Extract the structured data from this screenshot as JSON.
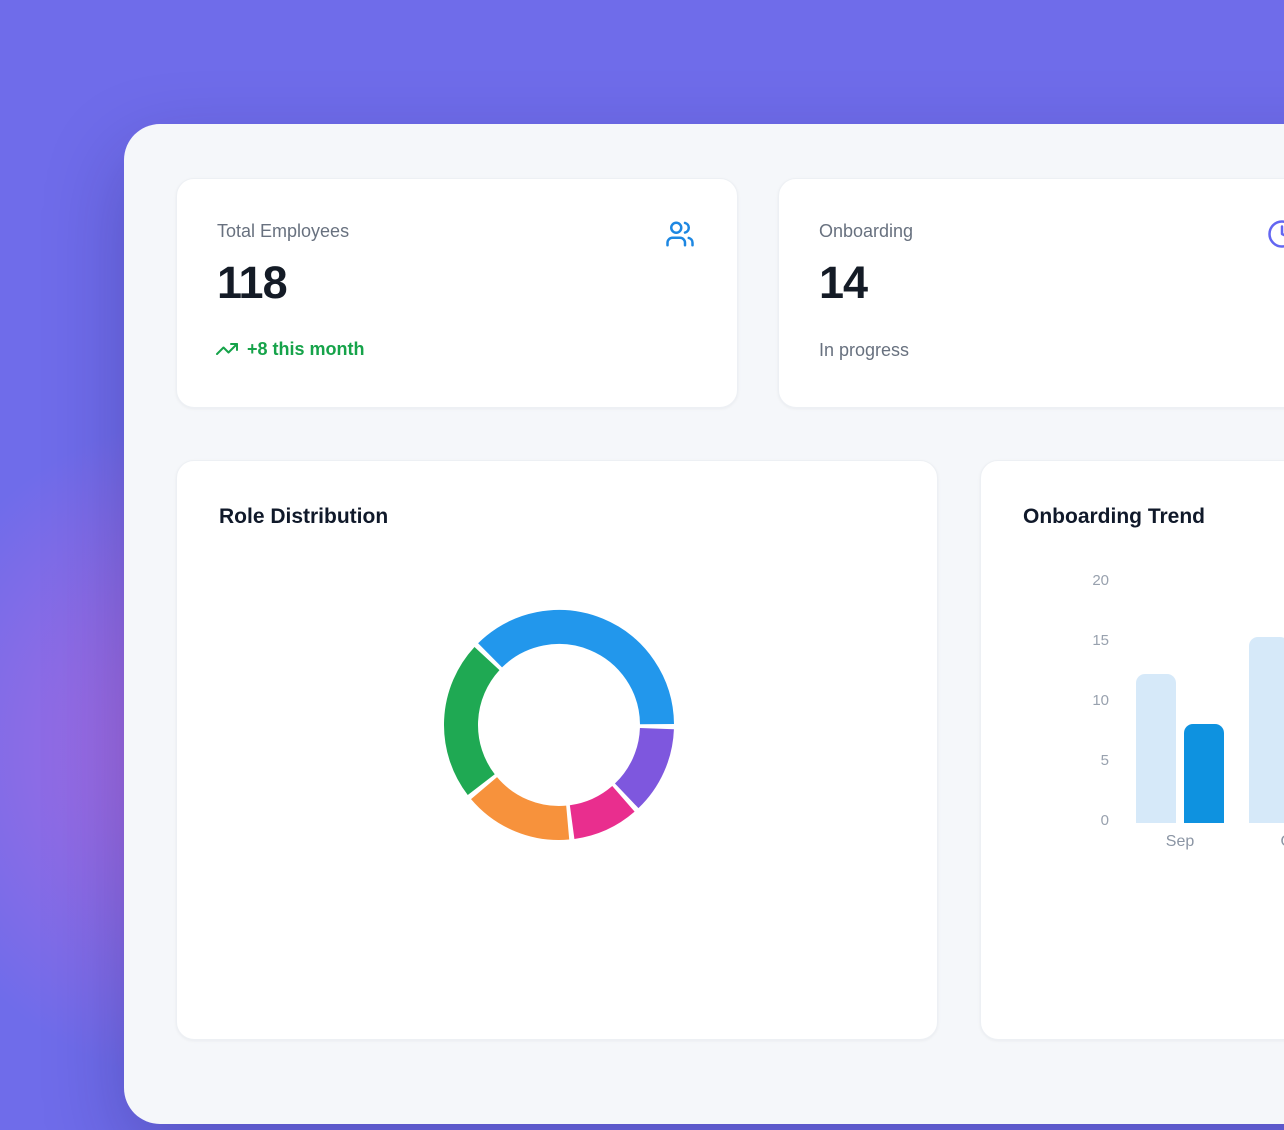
{
  "colors": {
    "background": "#6f6cea",
    "glow_pink": "#e76ad8",
    "panel": "#f5f7fa",
    "card": "#ffffff",
    "text_primary": "#141b26",
    "text_secondary": "#68717f",
    "users_icon_blue": "#1d87e2",
    "clock_icon_indigo": "#6366f1",
    "positive_green": "#16a34a",
    "axis_label_gray": "#98a1ae"
  },
  "stat_cards": [
    {
      "label": "Total Employees",
      "value": "118",
      "delta": "+8 this month",
      "icon": "users-icon"
    },
    {
      "label": "Onboarding",
      "value": "14",
      "subtext": "In progress",
      "icon": "clock-icon"
    }
  ],
  "chart_data": [
    {
      "type": "donut",
      "title": "Role Distribution",
      "legend_visible": false,
      "start_angle_deg": -46,
      "inner_radius_ratio": 0.7,
      "segments": [
        {
          "color": "#2297ec",
          "percent": 38
        },
        {
          "color": "#7e57de",
          "percent": 13
        },
        {
          "color": "#e92e8e",
          "percent": 10
        },
        {
          "color": "#f7923c",
          "percent": 16
        },
        {
          "color": "#1fa953",
          "percent": 23
        }
      ]
    },
    {
      "type": "bar",
      "title": "Onboarding Trend",
      "categories": [
        "Sep",
        "Oct"
      ],
      "series": [
        {
          "name": "light-blue",
          "color": "#d6e9f9",
          "values": [
            12,
            15
          ]
        },
        {
          "name": "dark-blue",
          "color": "#0e92e0",
          "values": [
            8,
            null
          ]
        }
      ],
      "ylim": [
        0,
        20
      ],
      "yticks": [
        0,
        5,
        10,
        15,
        20
      ],
      "grid": false,
      "legend_position": "none"
    }
  ]
}
